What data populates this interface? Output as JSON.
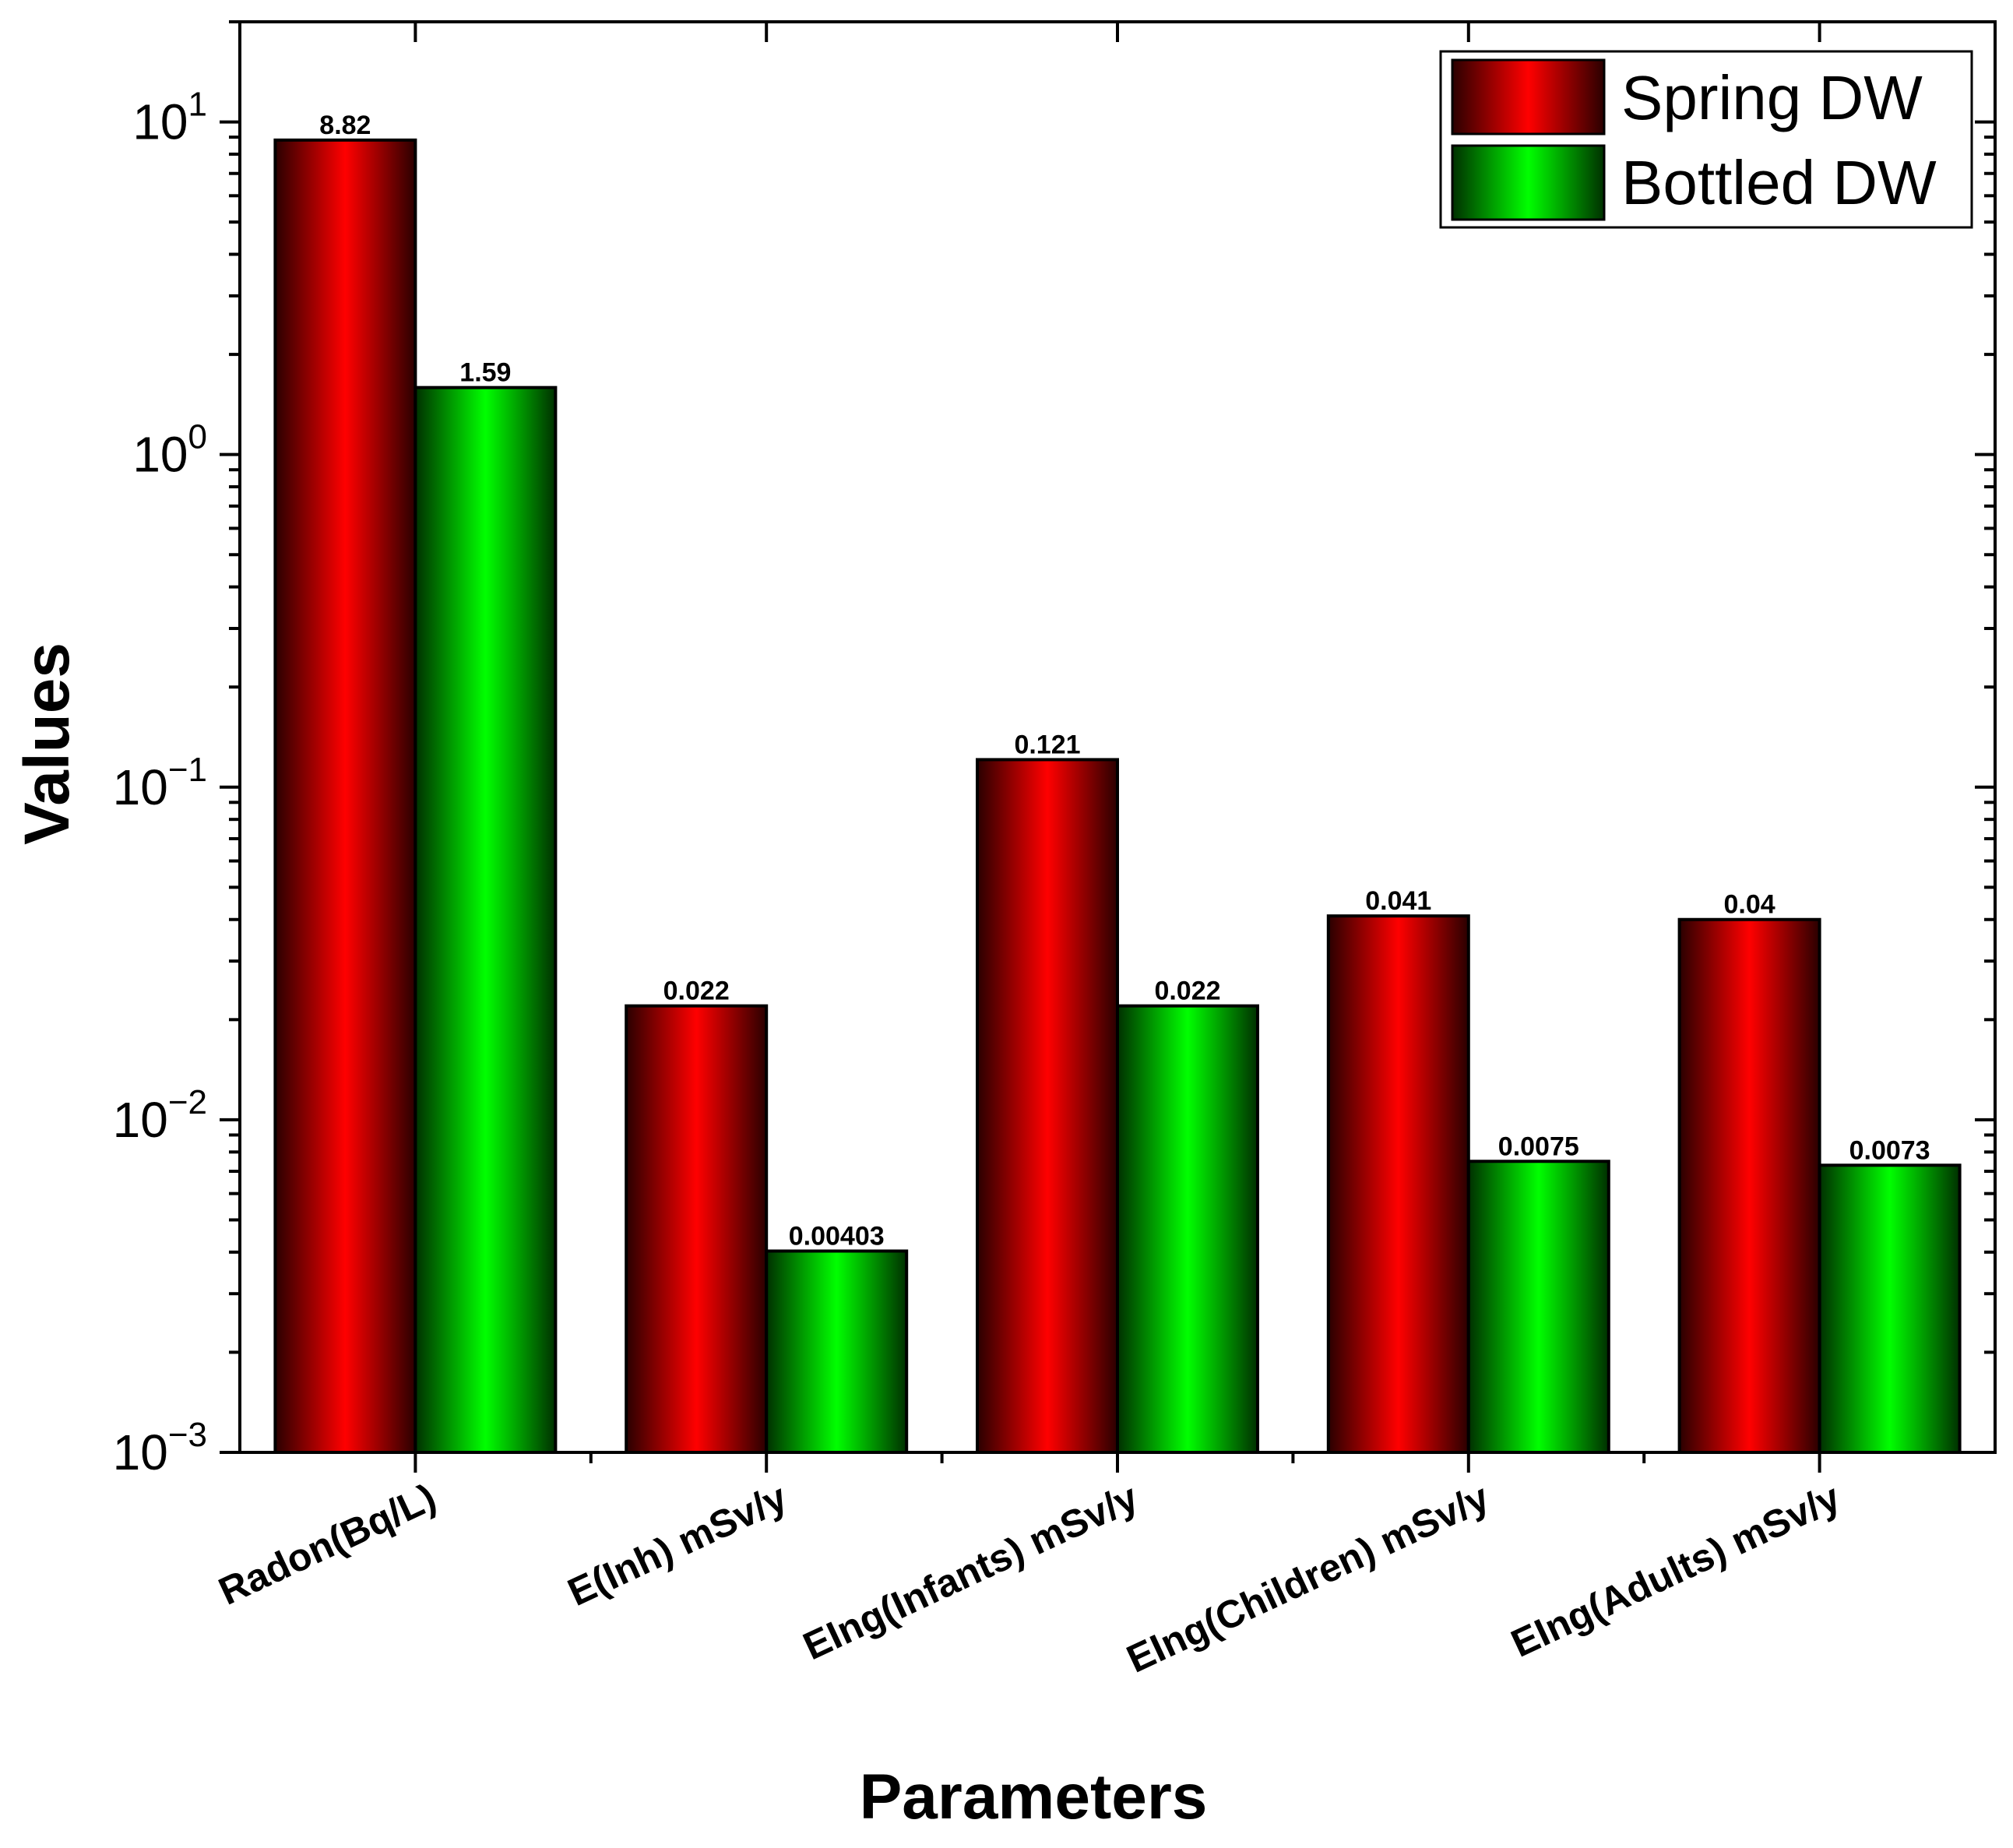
{
  "chart_data": {
    "type": "bar",
    "title": "",
    "xlabel": "Parameters",
    "ylabel": "Values",
    "yscale": "log",
    "ylim": [
      0.001,
      20
    ],
    "y_ticks": [
      {
        "base": "10",
        "exp": "-3",
        "value": 0.001
      },
      {
        "base": "10",
        "exp": "-2",
        "value": 0.01
      },
      {
        "base": "10",
        "exp": "-1",
        "value": 0.1
      },
      {
        "base": "10",
        "exp": "0",
        "value": 1
      },
      {
        "base": "10",
        "exp": "1",
        "value": 10
      }
    ],
    "categories": [
      "Radon(Bq/L)",
      "E(Inh) mSv/y",
      "EIng(Infants) mSv/y",
      "EIng(Children) mSv/y",
      "EIng(Adults) mSv/y"
    ],
    "series": [
      {
        "name": "Spring DW",
        "color": "#ff0000",
        "values": [
          8.82,
          0.022,
          0.121,
          0.041,
          0.04
        ],
        "labels": [
          "8.82",
          "0.022",
          "0.121",
          "0.041",
          "0.04"
        ]
      },
      {
        "name": "Bottled DW",
        "color": "#00ff00",
        "values": [
          1.59,
          0.00403,
          0.022,
          0.0075,
          0.0073
        ],
        "labels": [
          "1.59",
          "0.00403",
          "0.022",
          "0.0075",
          "0.0073"
        ]
      }
    ],
    "legend_position": "top-right"
  }
}
